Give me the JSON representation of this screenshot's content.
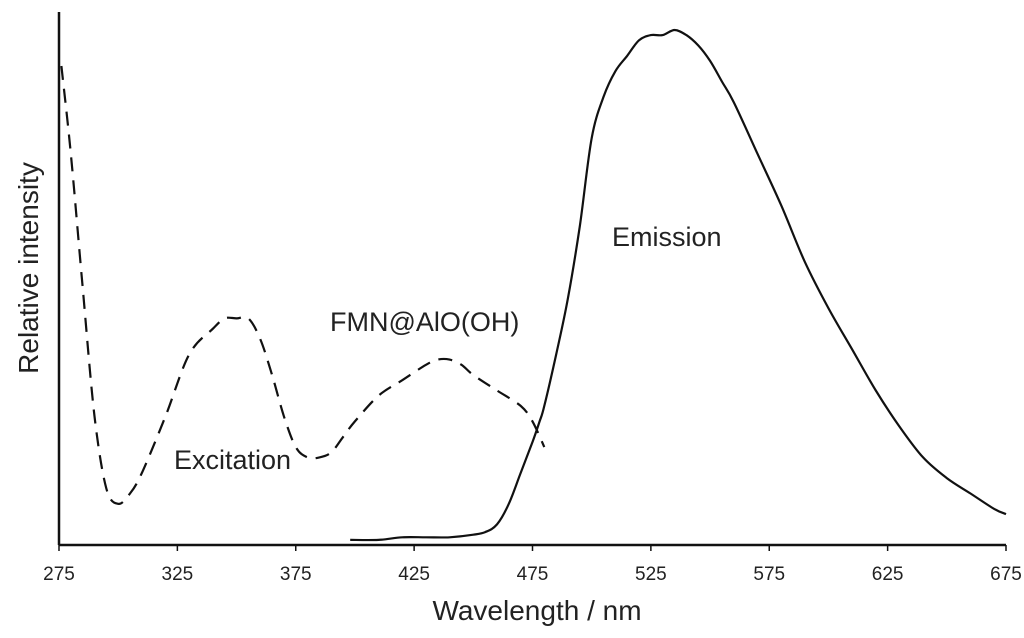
{
  "chart_data": {
    "type": "line",
    "title": "",
    "xlabel": "Wavelength / nm",
    "ylabel": "Relative intensity",
    "xlim": [
      275,
      675
    ],
    "ylim": [
      0,
      1
    ],
    "xticks": [
      "275",
      "325",
      "375",
      "425",
      "475",
      "525",
      "575",
      "625",
      "675"
    ],
    "grid": false,
    "annotations": [
      "FMN@AlO(OH)",
      "Excitation",
      "Emission"
    ],
    "series": [
      {
        "name": "Excitation",
        "style": "dashed",
        "x": [
          276,
          280,
          285,
          290,
          295,
          300,
          305,
          310,
          320,
          330,
          340,
          345,
          350,
          355,
          360,
          365,
          370,
          375,
          380,
          385,
          390,
          395,
          400,
          410,
          420,
          430,
          435,
          440,
          445,
          450,
          460,
          470,
          475,
          480
        ],
        "y": [
          0.93,
          0.76,
          0.5,
          0.25,
          0.11,
          0.08,
          0.1,
          0.14,
          0.25,
          0.37,
          0.42,
          0.44,
          0.44,
          0.44,
          0.4,
          0.33,
          0.25,
          0.19,
          0.17,
          0.17,
          0.18,
          0.21,
          0.24,
          0.29,
          0.32,
          0.35,
          0.36,
          0.36,
          0.35,
          0.33,
          0.3,
          0.27,
          0.24,
          0.19
        ]
      },
      {
        "name": "Emission",
        "style": "solid",
        "x": [
          398,
          410,
          420,
          430,
          440,
          450,
          455,
          460,
          465,
          470,
          475,
          478,
          480,
          485,
          490,
          495,
          500,
          505,
          510,
          515,
          520,
          525,
          530,
          535,
          540,
          545,
          550,
          555,
          560,
          570,
          580,
          590,
          600,
          610,
          620,
          630,
          640,
          650,
          660,
          670,
          675
        ],
        "y": [
          0.01,
          0.01,
          0.015,
          0.015,
          0.015,
          0.02,
          0.025,
          0.04,
          0.08,
          0.14,
          0.2,
          0.24,
          0.27,
          0.37,
          0.48,
          0.62,
          0.79,
          0.87,
          0.92,
          0.95,
          0.98,
          0.99,
          0.99,
          1.0,
          0.99,
          0.97,
          0.94,
          0.9,
          0.86,
          0.76,
          0.66,
          0.55,
          0.46,
          0.38,
          0.3,
          0.23,
          0.17,
          0.13,
          0.1,
          0.07,
          0.06
        ]
      }
    ]
  }
}
